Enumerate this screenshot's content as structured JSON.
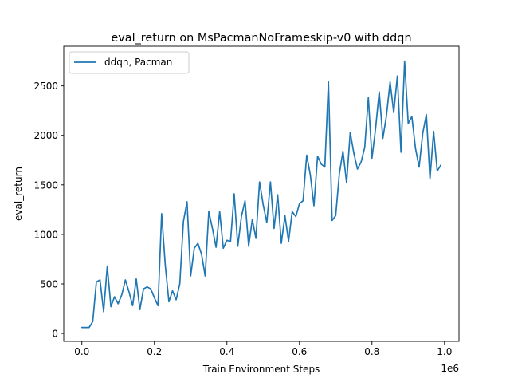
{
  "chart_data": {
    "type": "line",
    "title": "eval_return on MsPacmanNoFrameskip-v0 with ddqn",
    "xlabel": "Train Environment Steps",
    "ylabel": "eval_return",
    "x_offset_label": "1e6",
    "xlim": [
      -50000,
      1040000
    ],
    "ylim": [
      -80,
      2900
    ],
    "x_ticks": [
      0,
      200000,
      400000,
      600000,
      800000,
      1000000
    ],
    "x_tick_labels": [
      "0.0",
      "0.2",
      "0.4",
      "0.6",
      "0.8",
      "1.0"
    ],
    "y_ticks": [
      0,
      500,
      1000,
      1500,
      2000,
      2500
    ],
    "y_tick_labels": [
      "0",
      "500",
      "1000",
      "1500",
      "2000",
      "2500"
    ],
    "grid": false,
    "legend_position": "top-left",
    "colors": {
      "series": "#1f77b4",
      "axes": "#000000",
      "background": "#ffffff"
    },
    "x": [
      0,
      10000,
      20000,
      30000,
      40000,
      50000,
      60000,
      70000,
      80000,
      90000,
      100000,
      110000,
      120000,
      130000,
      140000,
      150000,
      160000,
      170000,
      180000,
      190000,
      200000,
      210000,
      220000,
      230000,
      240000,
      250000,
      260000,
      270000,
      280000,
      290000,
      300000,
      310000,
      320000,
      330000,
      340000,
      350000,
      360000,
      370000,
      380000,
      390000,
      400000,
      410000,
      420000,
      430000,
      440000,
      450000,
      460000,
      470000,
      480000,
      490000,
      500000,
      510000,
      520000,
      530000,
      540000,
      550000,
      560000,
      570000,
      580000,
      590000,
      600000,
      610000,
      620000,
      630000,
      640000,
      650000,
      660000,
      670000,
      680000,
      690000,
      700000,
      710000,
      720000,
      730000,
      740000,
      750000,
      760000,
      770000,
      780000,
      790000,
      800000,
      810000,
      820000,
      830000,
      840000,
      850000,
      860000,
      870000,
      880000,
      890000,
      900000,
      910000,
      920000,
      930000,
      940000,
      950000,
      960000,
      970000,
      980000,
      990000
    ],
    "series": [
      {
        "name": "ddqn, Pacman",
        "values": [
          60,
          60,
          60,
          120,
          520,
          540,
          220,
          680,
          270,
          370,
          300,
          390,
          540,
          420,
          280,
          550,
          240,
          450,
          470,
          450,
          360,
          280,
          1210,
          690,
          320,
          430,
          340,
          500,
          1130,
          1330,
          580,
          860,
          910,
          800,
          580,
          1230,
          1060,
          870,
          1230,
          860,
          940,
          930,
          1410,
          880,
          1180,
          1340,
          880,
          1150,
          960,
          1530,
          1300,
          1120,
          1530,
          1060,
          1400,
          910,
          1190,
          930,
          1230,
          1180,
          1310,
          1340,
          1800,
          1600,
          1290,
          1790,
          1710,
          1680,
          2540,
          1140,
          1190,
          1610,
          1840,
          1520,
          2030,
          1820,
          1660,
          1730,
          1880,
          2380,
          1770,
          2070,
          2440,
          1970,
          2200,
          2540,
          2230,
          2600,
          1830,
          2750,
          2120,
          2190,
          1870,
          1680,
          2020,
          2210,
          1560,
          2040,
          1640,
          1700
        ]
      }
    ]
  }
}
